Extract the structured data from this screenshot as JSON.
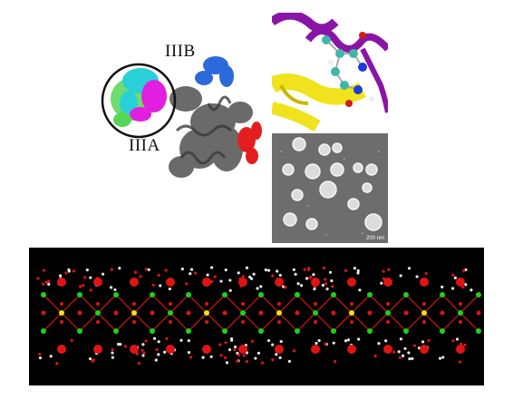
{
  "figure": {
    "protein_panel": {
      "domain_labels": [
        "IIIB",
        "IIIA"
      ],
      "colors": {
        "cyan": "#2ad0d8",
        "magenta": "#e21ee0",
        "green": "#55d655",
        "blue": "#2b6ad8",
        "red": "#e41e1e",
        "gray": "#5a5a5a",
        "circle": "#111111"
      }
    },
    "closeup_panel": {
      "colors": {
        "ribbon_purple": "#8a14a8",
        "ribbon_yellow": "#f0e31e",
        "atom_teal": "#3fb6a8",
        "atom_red": "#d31c1c",
        "atom_blue": "#1e3cd8"
      }
    },
    "micrograph_panel": {
      "scale_bar_label": "200 nm",
      "background": "#6d6d6d"
    },
    "crystal_panel": {
      "background": "#000000",
      "colors": {
        "green_atom": "#18d41a",
        "yellow_atom": "#f0e21a",
        "red_atom": "#e01414",
        "white_atom": "#e8e8e8"
      }
    }
  }
}
